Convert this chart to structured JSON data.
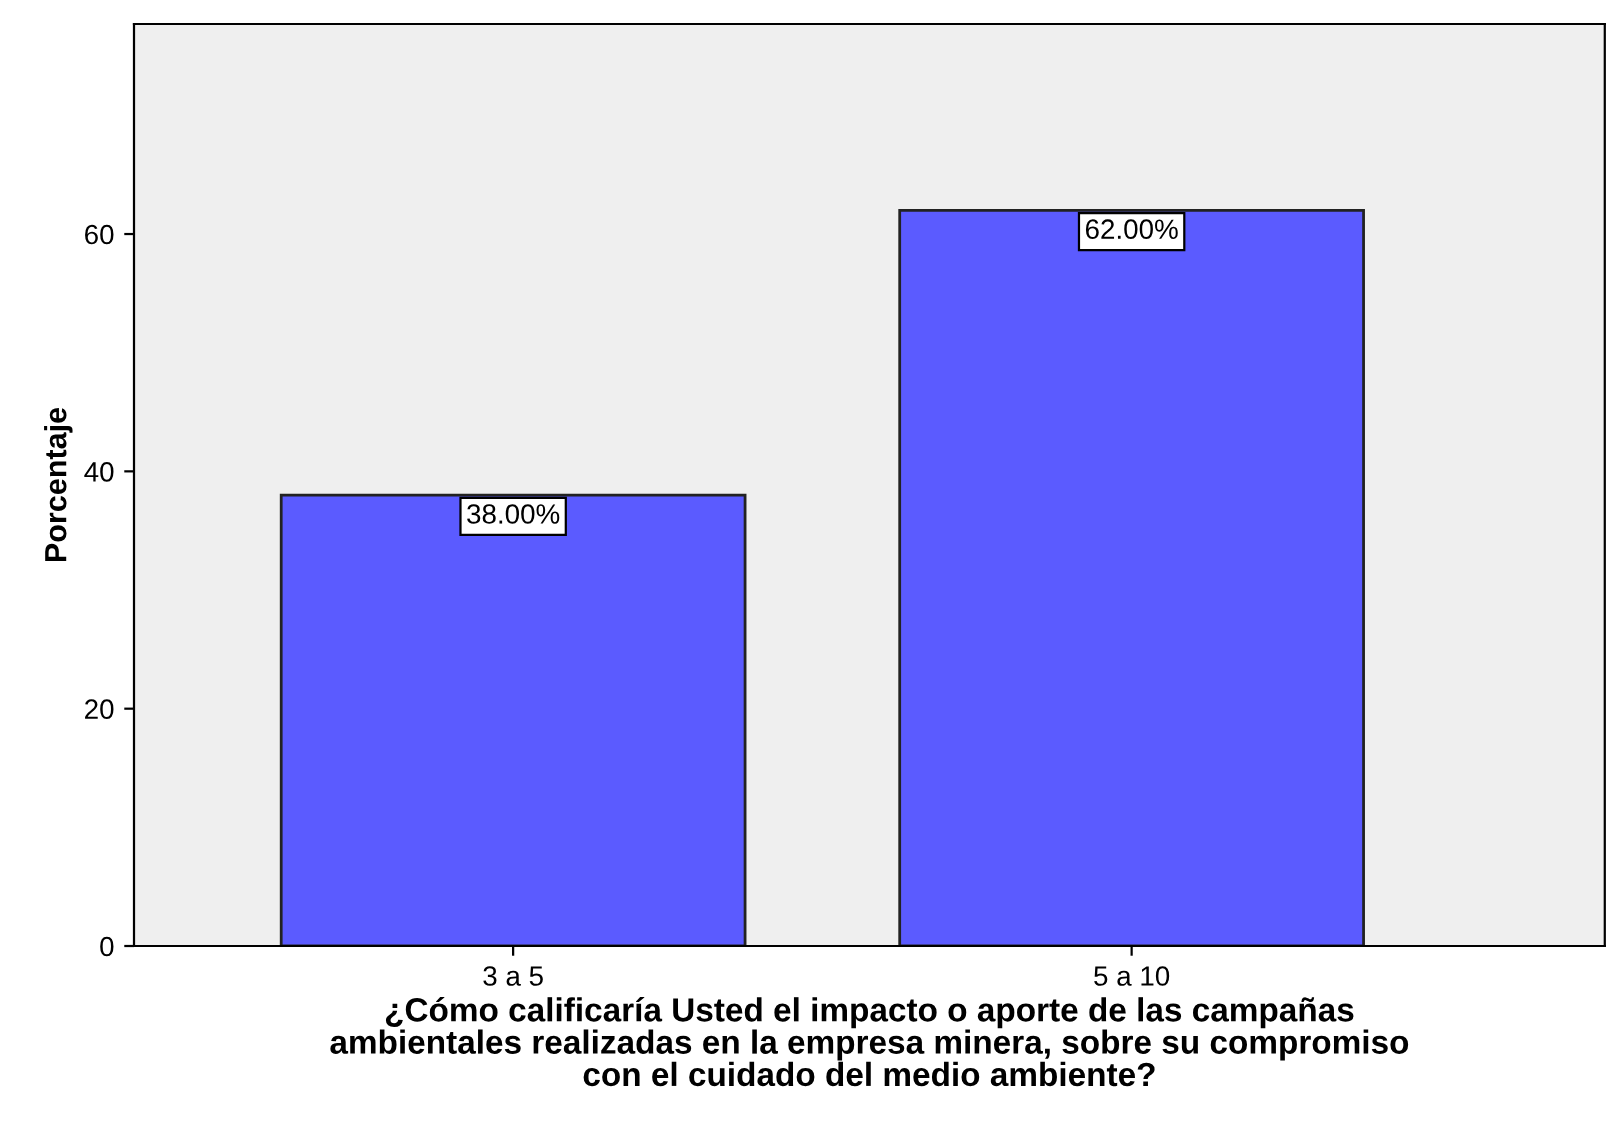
{
  "chart_data": {
    "type": "bar",
    "categories": [
      "3 a 5",
      "5 a 10"
    ],
    "values": [
      38,
      62
    ],
    "value_labels": [
      "38.00%",
      "62.00%"
    ],
    "color": "#5b5bff",
    "ylabel": "Porcentaje",
    "xlabel": "¿Cómo calificaría Usted el impacto o aporte de las campañas\nambientales realizadas en la empresa minera, sobre su compromiso\ncon el cuidado del medio ambiente?",
    "ylim": [
      0,
      77.7
    ],
    "yticks": [
      0,
      20,
      40,
      60
    ],
    "grid": false
  }
}
